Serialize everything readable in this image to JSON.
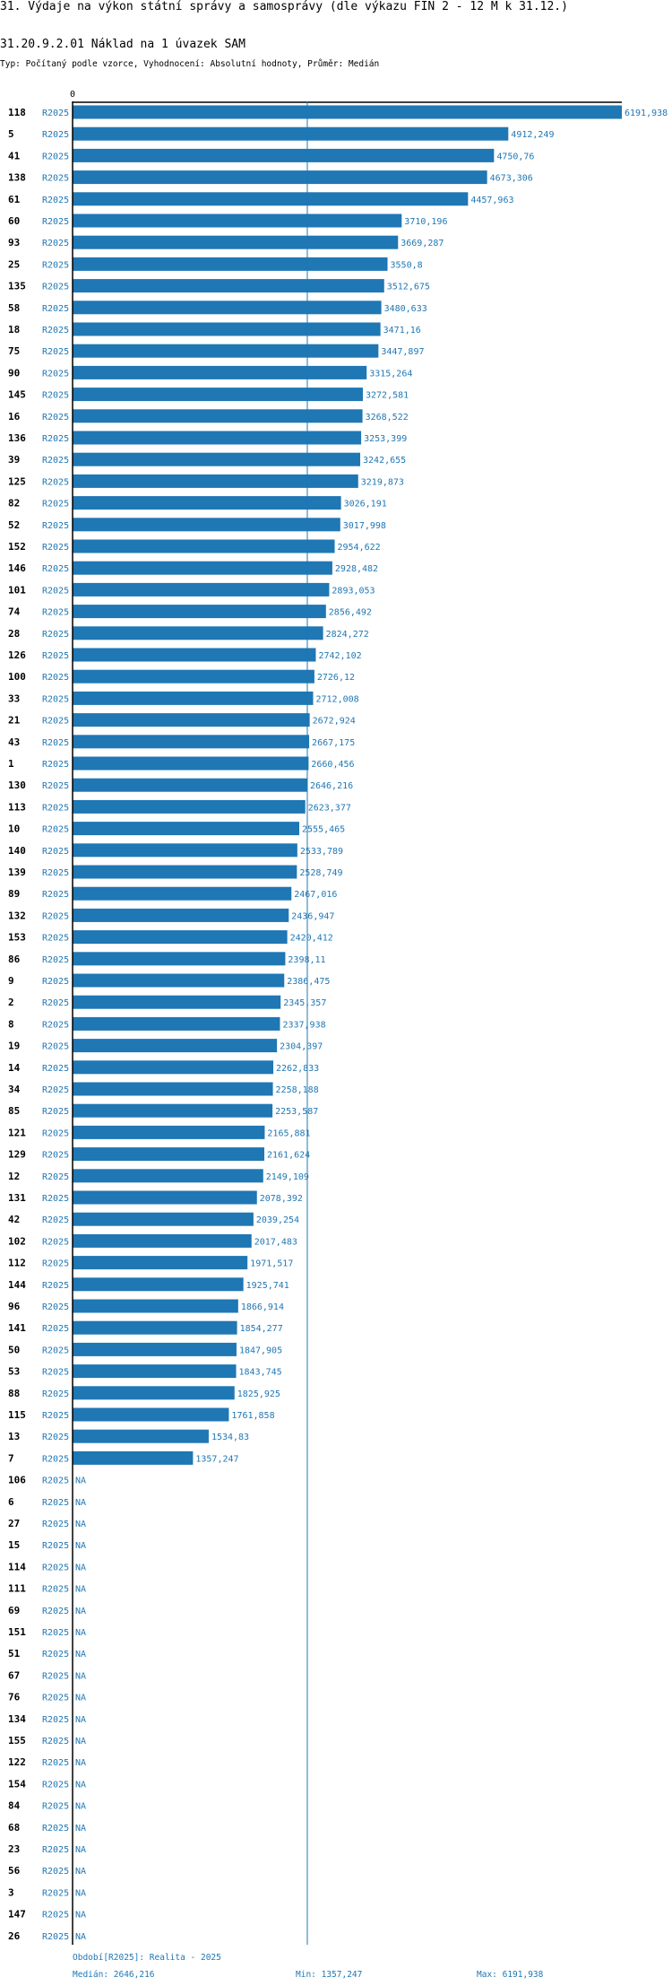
{
  "header": {
    "title": "31. Výdaje na výkon státní správy a samosprávy (dle výkazu FIN 2 - 12 M k 31.12.)",
    "subtitle": "31.20.9.2.01 Náklad na 1 úvazek SAM",
    "typ": "Typ: Počítaný podle vzorce, Vyhodnocení: Absolutní hodnoty, Průměr: Medián"
  },
  "colors": {
    "bar": "#1f77b4",
    "text_accent": "#1f77b4",
    "axis": "#000000",
    "median_line": "#1f77b4"
  },
  "chart_data": {
    "type": "bar",
    "orientation": "horizontal",
    "axis_zero_label": "0",
    "xlim": [
      0,
      6191.938
    ],
    "median": 2646.216,
    "period_label": "R2025",
    "na_label": "NA",
    "rows": [
      {
        "id": "118",
        "period": "R2025",
        "value": 6191.938,
        "label": "6191,938"
      },
      {
        "id": "5",
        "period": "R2025",
        "value": 4912.249,
        "label": "4912,249"
      },
      {
        "id": "41",
        "period": "R2025",
        "value": 4750.76,
        "label": "4750,76"
      },
      {
        "id": "138",
        "period": "R2025",
        "value": 4673.306,
        "label": "4673,306"
      },
      {
        "id": "61",
        "period": "R2025",
        "value": 4457.963,
        "label": "4457,963"
      },
      {
        "id": "60",
        "period": "R2025",
        "value": 3710.196,
        "label": "3710,196"
      },
      {
        "id": "93",
        "period": "R2025",
        "value": 3669.287,
        "label": "3669,287"
      },
      {
        "id": "25",
        "period": "R2025",
        "value": 3550.8,
        "label": "3550,8"
      },
      {
        "id": "135",
        "period": "R2025",
        "value": 3512.675,
        "label": "3512,675"
      },
      {
        "id": "58",
        "period": "R2025",
        "value": 3480.633,
        "label": "3480,633"
      },
      {
        "id": "18",
        "period": "R2025",
        "value": 3471.16,
        "label": "3471,16"
      },
      {
        "id": "75",
        "period": "R2025",
        "value": 3447.897,
        "label": "3447,897"
      },
      {
        "id": "90",
        "period": "R2025",
        "value": 3315.264,
        "label": "3315,264"
      },
      {
        "id": "145",
        "period": "R2025",
        "value": 3272.581,
        "label": "3272,581"
      },
      {
        "id": "16",
        "period": "R2025",
        "value": 3268.522,
        "label": "3268,522"
      },
      {
        "id": "136",
        "period": "R2025",
        "value": 3253.399,
        "label": "3253,399"
      },
      {
        "id": "39",
        "period": "R2025",
        "value": 3242.655,
        "label": "3242,655"
      },
      {
        "id": "125",
        "period": "R2025",
        "value": 3219.873,
        "label": "3219,873"
      },
      {
        "id": "82",
        "period": "R2025",
        "value": 3026.191,
        "label": "3026,191"
      },
      {
        "id": "52",
        "period": "R2025",
        "value": 3017.998,
        "label": "3017,998"
      },
      {
        "id": "152",
        "period": "R2025",
        "value": 2954.622,
        "label": "2954,622"
      },
      {
        "id": "146",
        "period": "R2025",
        "value": 2928.482,
        "label": "2928,482"
      },
      {
        "id": "101",
        "period": "R2025",
        "value": 2893.053,
        "label": "2893,053"
      },
      {
        "id": "74",
        "period": "R2025",
        "value": 2856.492,
        "label": "2856,492"
      },
      {
        "id": "28",
        "period": "R2025",
        "value": 2824.272,
        "label": "2824,272"
      },
      {
        "id": "126",
        "period": "R2025",
        "value": 2742.102,
        "label": "2742,102"
      },
      {
        "id": "100",
        "period": "R2025",
        "value": 2726.12,
        "label": "2726,12"
      },
      {
        "id": "33",
        "period": "R2025",
        "value": 2712.008,
        "label": "2712,008"
      },
      {
        "id": "21",
        "period": "R2025",
        "value": 2672.924,
        "label": "2672,924"
      },
      {
        "id": "43",
        "period": "R2025",
        "value": 2667.175,
        "label": "2667,175"
      },
      {
        "id": "1",
        "period": "R2025",
        "value": 2660.456,
        "label": "2660,456"
      },
      {
        "id": "130",
        "period": "R2025",
        "value": 2646.216,
        "label": "2646,216"
      },
      {
        "id": "113",
        "period": "R2025",
        "value": 2623.377,
        "label": "2623,377"
      },
      {
        "id": "10",
        "period": "R2025",
        "value": 2555.465,
        "label": "2555,465"
      },
      {
        "id": "140",
        "period": "R2025",
        "value": 2533.789,
        "label": "2533,789"
      },
      {
        "id": "139",
        "period": "R2025",
        "value": 2528.749,
        "label": "2528,749"
      },
      {
        "id": "89",
        "period": "R2025",
        "value": 2467.016,
        "label": "2467,016"
      },
      {
        "id": "132",
        "period": "R2025",
        "value": 2436.947,
        "label": "2436,947"
      },
      {
        "id": "153",
        "period": "R2025",
        "value": 2420.412,
        "label": "2420,412"
      },
      {
        "id": "86",
        "period": "R2025",
        "value": 2398.11,
        "label": "2398,11"
      },
      {
        "id": "9",
        "period": "R2025",
        "value": 2386.475,
        "label": "2386,475"
      },
      {
        "id": "2",
        "period": "R2025",
        "value": 2345.357,
        "label": "2345,357"
      },
      {
        "id": "8",
        "period": "R2025",
        "value": 2337.938,
        "label": "2337,938"
      },
      {
        "id": "19",
        "period": "R2025",
        "value": 2304.397,
        "label": "2304,397"
      },
      {
        "id": "14",
        "period": "R2025",
        "value": 2262.833,
        "label": "2262,833"
      },
      {
        "id": "34",
        "period": "R2025",
        "value": 2258.188,
        "label": "2258,188"
      },
      {
        "id": "85",
        "period": "R2025",
        "value": 2253.587,
        "label": "2253,587"
      },
      {
        "id": "121",
        "period": "R2025",
        "value": 2165.881,
        "label": "2165,881"
      },
      {
        "id": "129",
        "period": "R2025",
        "value": 2161.624,
        "label": "2161,624"
      },
      {
        "id": "12",
        "period": "R2025",
        "value": 2149.109,
        "label": "2149,109"
      },
      {
        "id": "131",
        "period": "R2025",
        "value": 2078.392,
        "label": "2078,392"
      },
      {
        "id": "42",
        "period": "R2025",
        "value": 2039.254,
        "label": "2039,254"
      },
      {
        "id": "102",
        "period": "R2025",
        "value": 2017.483,
        "label": "2017,483"
      },
      {
        "id": "112",
        "period": "R2025",
        "value": 1971.517,
        "label": "1971,517"
      },
      {
        "id": "144",
        "period": "R2025",
        "value": 1925.741,
        "label": "1925,741"
      },
      {
        "id": "96",
        "period": "R2025",
        "value": 1866.914,
        "label": "1866,914"
      },
      {
        "id": "141",
        "period": "R2025",
        "value": 1854.277,
        "label": "1854,277"
      },
      {
        "id": "50",
        "period": "R2025",
        "value": 1847.905,
        "label": "1847,905"
      },
      {
        "id": "53",
        "period": "R2025",
        "value": 1843.745,
        "label": "1843,745"
      },
      {
        "id": "88",
        "period": "R2025",
        "value": 1825.925,
        "label": "1825,925"
      },
      {
        "id": "115",
        "period": "R2025",
        "value": 1761.858,
        "label": "1761,858"
      },
      {
        "id": "13",
        "period": "R2025",
        "value": 1534.83,
        "label": "1534,83"
      },
      {
        "id": "7",
        "period": "R2025",
        "value": 1357.247,
        "label": "1357,247"
      },
      {
        "id": "106",
        "period": "R2025",
        "value": null,
        "label": "NA"
      },
      {
        "id": "6",
        "period": "R2025",
        "value": null,
        "label": "NA"
      },
      {
        "id": "27",
        "period": "R2025",
        "value": null,
        "label": "NA"
      },
      {
        "id": "15",
        "period": "R2025",
        "value": null,
        "label": "NA"
      },
      {
        "id": "114",
        "period": "R2025",
        "value": null,
        "label": "NA"
      },
      {
        "id": "111",
        "period": "R2025",
        "value": null,
        "label": "NA"
      },
      {
        "id": "69",
        "period": "R2025",
        "value": null,
        "label": "NA"
      },
      {
        "id": "151",
        "period": "R2025",
        "value": null,
        "label": "NA"
      },
      {
        "id": "51",
        "period": "R2025",
        "value": null,
        "label": "NA"
      },
      {
        "id": "67",
        "period": "R2025",
        "value": null,
        "label": "NA"
      },
      {
        "id": "76",
        "period": "R2025",
        "value": null,
        "label": "NA"
      },
      {
        "id": "134",
        "period": "R2025",
        "value": null,
        "label": "NA"
      },
      {
        "id": "155",
        "period": "R2025",
        "value": null,
        "label": "NA"
      },
      {
        "id": "122",
        "period": "R2025",
        "value": null,
        "label": "NA"
      },
      {
        "id": "154",
        "period": "R2025",
        "value": null,
        "label": "NA"
      },
      {
        "id": "84",
        "period": "R2025",
        "value": null,
        "label": "NA"
      },
      {
        "id": "68",
        "period": "R2025",
        "value": null,
        "label": "NA"
      },
      {
        "id": "23",
        "period": "R2025",
        "value": null,
        "label": "NA"
      },
      {
        "id": "56",
        "period": "R2025",
        "value": null,
        "label": "NA"
      },
      {
        "id": "3",
        "period": "R2025",
        "value": null,
        "label": "NA"
      },
      {
        "id": "147",
        "period": "R2025",
        "value": null,
        "label": "NA"
      },
      {
        "id": "26",
        "period": "R2025",
        "value": null,
        "label": "NA"
      }
    ]
  },
  "footer": {
    "period_note": "Období[R2025]: Realita - 2025",
    "median_text": "Medián: 2646,216",
    "min_text": "Min: 1357,247",
    "max_text": "Max: 6191,938"
  }
}
